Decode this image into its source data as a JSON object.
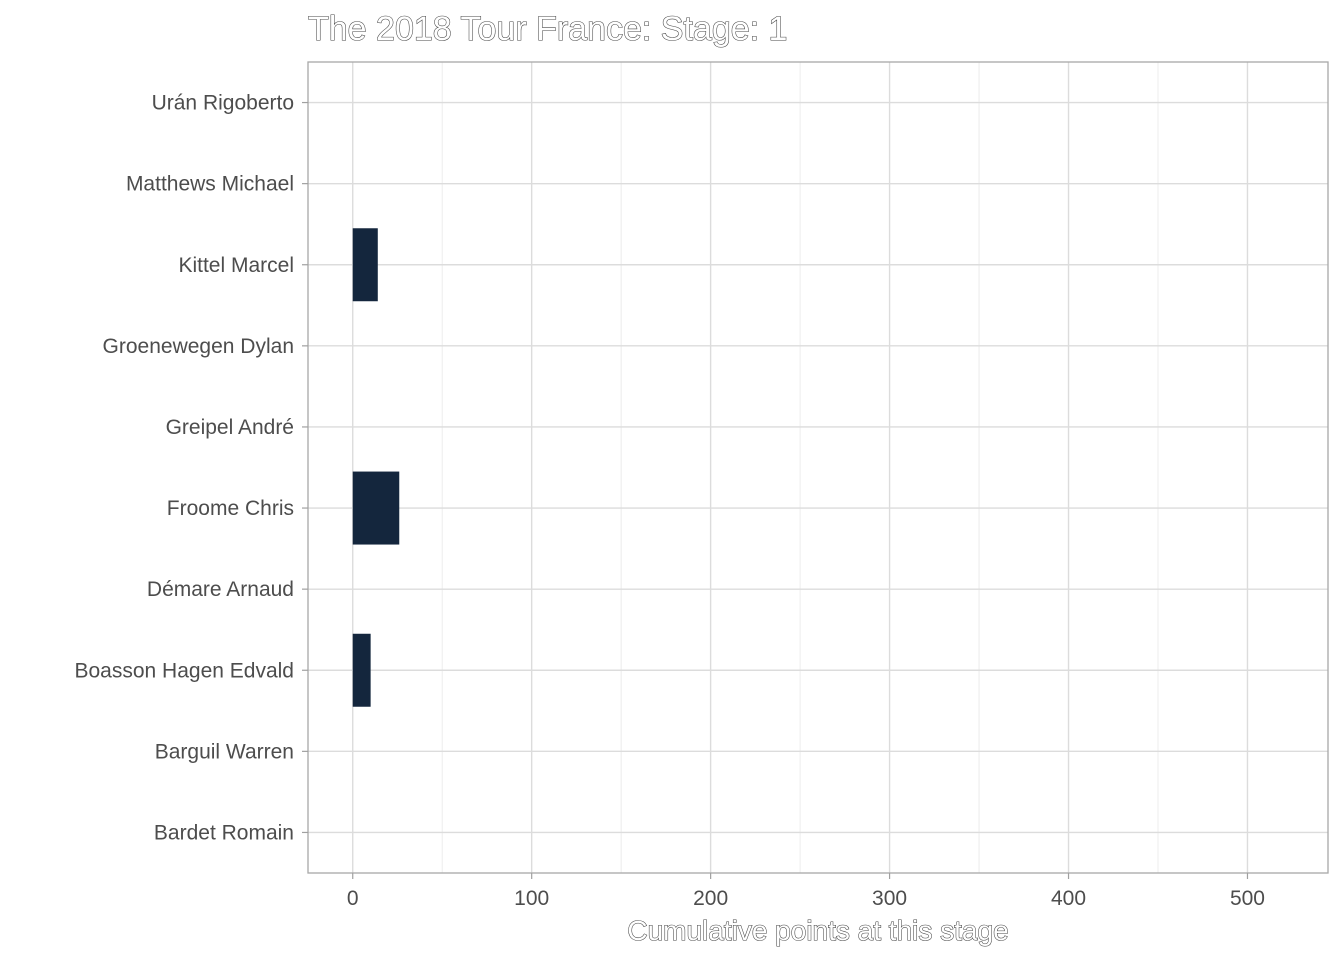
{
  "chart_data": {
    "type": "bar",
    "orientation": "horizontal",
    "title": "The 2018 Tour France: Stage: 1",
    "xlabel": "Cumulative points at this stage",
    "ylabel": "",
    "categories": [
      "Urán Rigoberto",
      "Matthews Michael",
      "Kittel Marcel",
      "Groenewegen Dylan",
      "Greipel André",
      "Froome Chris",
      "Démare Arnaud",
      "Boasson Hagen Edvald",
      "Barguil Warren",
      "Bardet Romain"
    ],
    "values": [
      0,
      0,
      14,
      0,
      0,
      26,
      0,
      10,
      0,
      0
    ],
    "xlim": [
      -25,
      545
    ],
    "x_ticks": [
      0,
      100,
      200,
      300,
      400,
      500
    ],
    "x_tick_labels": [
      "0",
      "100",
      "200",
      "300",
      "400",
      "500"
    ],
    "bar_color": "#14263d",
    "grid": true,
    "legend": "none"
  }
}
